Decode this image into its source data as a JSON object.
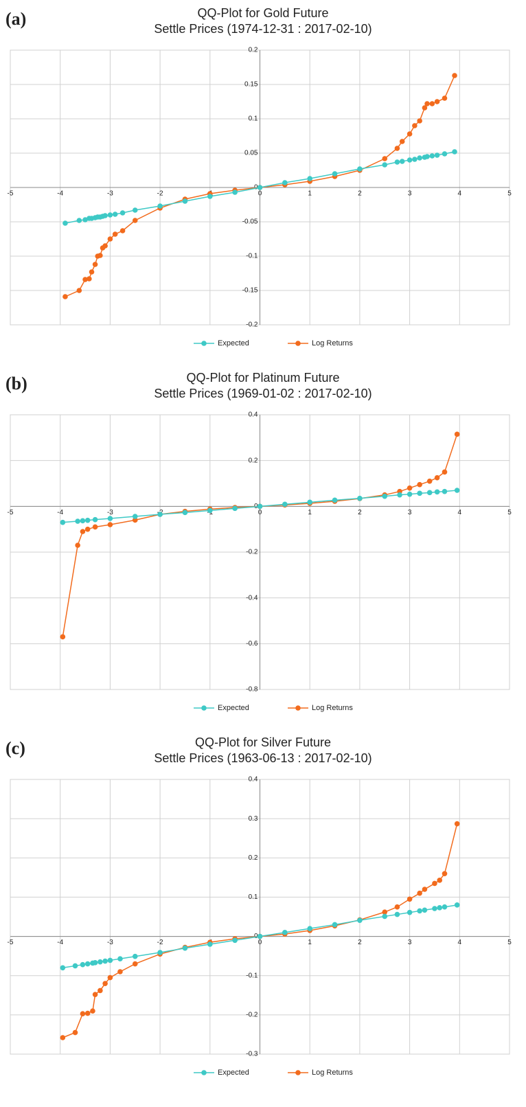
{
  "chart_data": [
    {
      "type": "line",
      "panel": "(a)",
      "title": "QQ-Plot for Gold Future",
      "subtitle": "Settle Prices (1974-12-31 : 2017-02-10)",
      "x": [
        -3.9,
        -3.62,
        -3.5,
        -3.42,
        -3.37,
        -3.3,
        -3.25,
        -3.2,
        -3.15,
        -3.1,
        -3,
        -2.9,
        -2.75,
        -2.5,
        -2,
        -1.5,
        -1,
        -0.5,
        0,
        0.5,
        1,
        1.5,
        2,
        2.5,
        2.75,
        2.85,
        3,
        3.1,
        3.2,
        3.3,
        3.35,
        3.45,
        3.55,
        3.7,
        3.9
      ],
      "series": [
        {
          "name": "Expected",
          "color": "#3ec9c6",
          "values": [
            -0.052,
            -0.048,
            -0.047,
            -0.045,
            -0.045,
            -0.044,
            -0.043,
            -0.043,
            -0.042,
            -0.041,
            -0.04,
            -0.039,
            -0.037,
            -0.033,
            -0.027,
            -0.02,
            -0.013,
            -0.007,
            0,
            0.007,
            0.013,
            0.02,
            0.027,
            0.033,
            0.037,
            0.038,
            0.04,
            0.041,
            0.043,
            0.044,
            0.045,
            0.046,
            0.047,
            0.049,
            0.052
          ]
        },
        {
          "name": "Log Returns",
          "color": "#f26b1d",
          "values": [
            -0.159,
            -0.15,
            -0.134,
            -0.133,
            -0.123,
            -0.112,
            -0.1,
            -0.099,
            -0.088,
            -0.085,
            -0.075,
            -0.068,
            -0.063,
            -0.048,
            -0.03,
            -0.017,
            -0.009,
            -0.004,
            0,
            0.004,
            0.009,
            0.016,
            0.025,
            0.042,
            0.057,
            0.067,
            0.078,
            0.09,
            0.097,
            0.116,
            0.122,
            0.122,
            0.125,
            0.13,
            0.163
          ]
        }
      ],
      "xlim": [
        -5,
        5
      ],
      "xticks": [
        -5,
        -4,
        -3,
        -2,
        -1,
        0,
        1,
        2,
        3,
        4,
        5
      ],
      "ylim": [
        -0.2,
        0.2
      ],
      "yticks": [
        -0.2,
        -0.15,
        -0.1,
        -0.05,
        0,
        0.05,
        0.1,
        0.15,
        0.2
      ],
      "grid": true,
      "legend": "bottom"
    },
    {
      "type": "line",
      "panel": "(b)",
      "title": "QQ-Plot for Platinum Future",
      "subtitle": "Settle Prices (1969-01-02 : 2017-02-10)",
      "x": [
        -3.95,
        -3.65,
        -3.55,
        -3.45,
        -3.3,
        -3,
        -2.5,
        -2,
        -1.5,
        -1,
        -0.5,
        0,
        0.5,
        1,
        1.5,
        2,
        2.5,
        2.8,
        3,
        3.2,
        3.4,
        3.55,
        3.7,
        3.95
      ],
      "series": [
        {
          "name": "Expected",
          "color": "#3ec9c6",
          "values": [
            -0.07,
            -0.065,
            -0.063,
            -0.061,
            -0.058,
            -0.053,
            -0.044,
            -0.035,
            -0.027,
            -0.018,
            -0.009,
            0,
            0.009,
            0.018,
            0.027,
            0.035,
            0.044,
            0.05,
            0.053,
            0.057,
            0.06,
            0.063,
            0.065,
            0.07
          ]
        },
        {
          "name": "Log Returns",
          "color": "#f26b1d",
          "values": [
            -0.57,
            -0.17,
            -0.11,
            -0.1,
            -0.09,
            -0.08,
            -0.06,
            -0.035,
            -0.022,
            -0.012,
            -0.005,
            0,
            0.006,
            0.013,
            0.022,
            0.034,
            0.05,
            0.065,
            0.08,
            0.095,
            0.11,
            0.125,
            0.15,
            0.315
          ]
        }
      ],
      "xlim": [
        -5,
        5
      ],
      "xticks": [
        -5,
        -4,
        -3,
        -2,
        -1,
        0,
        1,
        2,
        3,
        4,
        5
      ],
      "ylim": [
        -0.8,
        0.4
      ],
      "yticks": [
        -0.8,
        -0.6,
        -0.4,
        -0.2,
        0,
        0.2,
        0.4
      ],
      "grid": true,
      "legend": "bottom"
    },
    {
      "type": "line",
      "panel": "(c)",
      "title": "QQ-Plot for Silver Future",
      "subtitle": "Settle Prices (1963-06-13 : 2017-02-10)",
      "x": [
        -3.95,
        -3.7,
        -3.55,
        -3.45,
        -3.35,
        -3.3,
        -3.2,
        -3.1,
        -3,
        -2.8,
        -2.5,
        -2,
        -1.5,
        -1,
        -0.5,
        0,
        0.5,
        1,
        1.5,
        2,
        2.5,
        2.75,
        3,
        3.2,
        3.3,
        3.5,
        3.6,
        3.7,
        3.95
      ],
      "series": [
        {
          "name": "Expected",
          "color": "#3ec9c6",
          "values": [
            -0.08,
            -0.075,
            -0.072,
            -0.07,
            -0.068,
            -0.067,
            -0.065,
            -0.063,
            -0.061,
            -0.057,
            -0.051,
            -0.041,
            -0.03,
            -0.02,
            -0.01,
            0,
            0.01,
            0.02,
            0.03,
            0.041,
            0.051,
            0.056,
            0.061,
            0.065,
            0.067,
            0.071,
            0.073,
            0.075,
            0.08
          ]
        },
        {
          "name": "Log Returns",
          "color": "#f26b1d",
          "values": [
            -0.258,
            -0.245,
            -0.197,
            -0.196,
            -0.19,
            -0.148,
            -0.138,
            -0.12,
            -0.105,
            -0.09,
            -0.07,
            -0.045,
            -0.028,
            -0.015,
            -0.006,
            0,
            0.006,
            0.015,
            0.027,
            0.042,
            0.062,
            0.075,
            0.095,
            0.11,
            0.12,
            0.135,
            0.143,
            0.16,
            0.287
          ]
        }
      ],
      "xlim": [
        -5,
        5
      ],
      "xticks": [
        -5,
        -4,
        -3,
        -2,
        -1,
        0,
        1,
        2,
        3,
        4,
        5
      ],
      "ylim": [
        -0.3,
        0.4
      ],
      "yticks": [
        -0.3,
        -0.2,
        -0.1,
        0,
        0.1,
        0.2,
        0.3,
        0.4
      ],
      "grid": true,
      "legend": "bottom"
    }
  ]
}
